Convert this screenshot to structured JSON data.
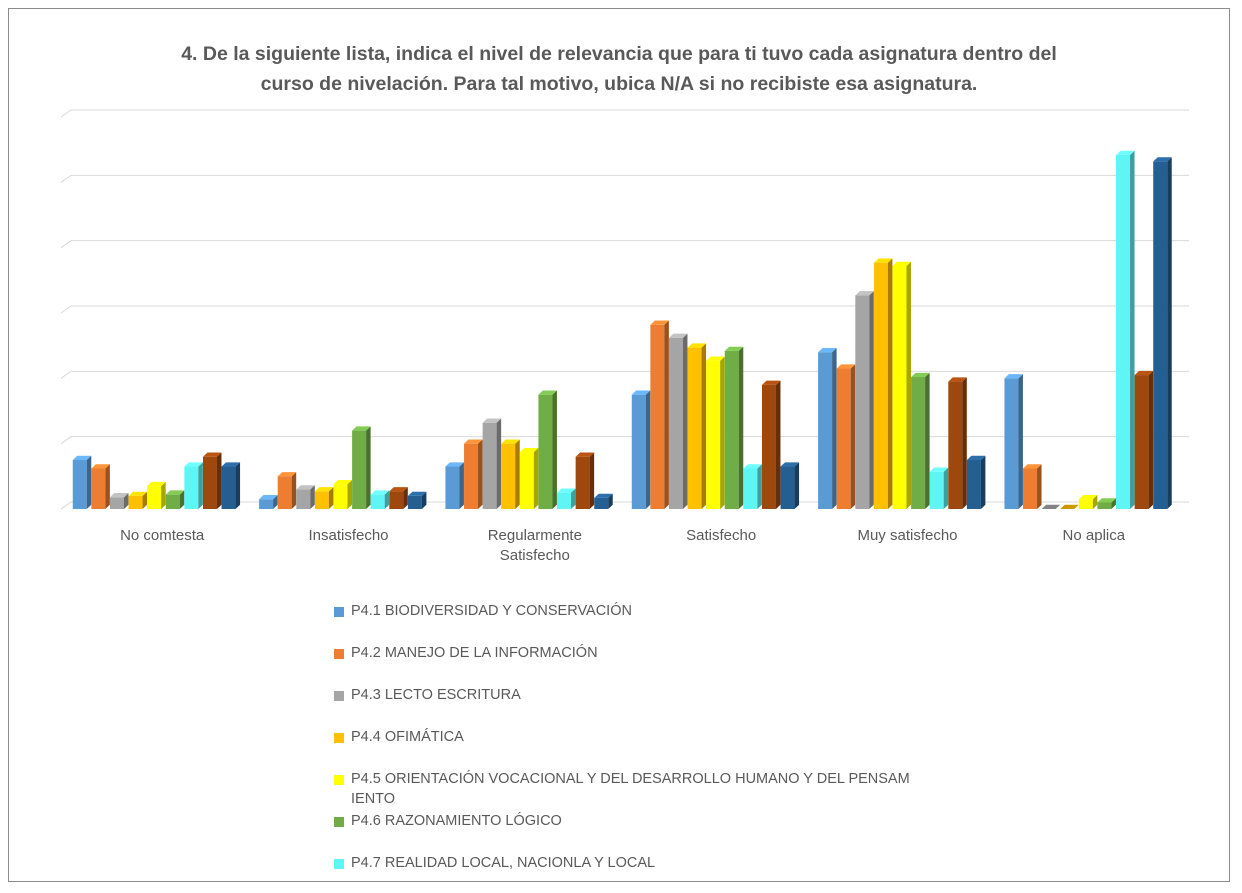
{
  "title": {
    "line1": "4. De la siguiente lista, indica el nivel de relevancia que para ti tuvo cada asignatura dentro del",
    "line2": "curso de nivelación. Para tal motivo, ubica N/A si no recibiste esa asignatura."
  },
  "chart_data": {
    "type": "bar",
    "title": "4. De la siguiente lista, indica el nivel de relevancia que para ti tuvo cada asignatura dentro del curso de nivelación. Para tal motivo, ubica N/A si no recibiste esa asignatura.",
    "categories": [
      "No comtesta",
      "Insatisfecho",
      "Regularmente Satisfecho",
      "Satisfecho",
      "Muy satisfecho",
      "No aplica"
    ],
    "ylim": [
      0,
      6
    ],
    "grid": true,
    "legend_position": "bottom",
    "series": [
      {
        "name": "P4.1 BIODIVERSIDAD Y CONSERVACIÓN",
        "color": "#5b9bd5",
        "values": [
          0.75,
          0.15,
          0.65,
          1.75,
          2.4,
          2.0
        ]
      },
      {
        "name": "P4.2 MANEJO DE LA INFORMACIÓN",
        "color": "#ed7d31",
        "values": [
          0.62,
          0.5,
          1.0,
          2.82,
          2.15,
          0.62
        ]
      },
      {
        "name": "P4.3 LECTO ESCRITURA",
        "color": "#a5a5a5",
        "values": [
          0.18,
          0.3,
          1.32,
          2.62,
          3.27,
          0.0
        ]
      },
      {
        "name": "P4.4 OFIMÁTICA",
        "color": "#ffc000",
        "values": [
          0.2,
          0.27,
          1.0,
          2.47,
          3.77,
          0.0
        ]
      },
      {
        "name": "P4.5 ORIENTACIÓN VOCACIONAL Y DEL DESARROLLO HUMANO Y DEL PENSAMIENTO",
        "color": "#ffff00",
        "values": [
          0.35,
          0.38,
          0.87,
          2.27,
          3.72,
          0.15
        ]
      },
      {
        "name": "P4.6 RAZONAMIENTO LÓGICO",
        "color": "#70ad47",
        "values": [
          0.22,
          1.2,
          1.75,
          2.42,
          2.02,
          0.1
        ]
      },
      {
        "name": "P4.7 REALIDAD LOCAL, NACIONLA Y LOCAL",
        "color": "#5ff5f5",
        "values": [
          0.65,
          0.22,
          0.25,
          0.62,
          0.57,
          5.42
        ]
      },
      {
        "color": "#9e480e",
        "values": [
          0.8,
          0.27,
          0.8,
          1.9,
          1.95,
          2.05
        ]
      },
      {
        "color": "#255e91",
        "values": [
          0.65,
          0.2,
          0.17,
          0.65,
          0.75,
          5.32
        ]
      }
    ]
  },
  "legend": {
    "items": [
      {
        "label": "P4.1 BIODIVERSIDAD Y CONSERVACIÓN",
        "color": "#5b9bd5"
      },
      {
        "label": "P4.2 MANEJO DE LA INFORMACIÓN",
        "color": "#ed7d31"
      },
      {
        "label": "P4.3 LECTO ESCRITURA",
        "color": "#a5a5a5"
      },
      {
        "label": "P4.4 OFIMÁTICA",
        "color": "#ffc000"
      },
      {
        "label": "P4.5 ORIENTACIÓN VOCACIONAL Y DEL DESARROLLO HUMANO Y DEL PENSAM IENTO",
        "color": "#ffff00"
      },
      {
        "label": "P4.6 RAZONAMIENTO LÓGICO",
        "color": "#70ad47"
      },
      {
        "label": "P4.7 REALIDAD LOCAL, NACIONLA Y LOCAL",
        "color": "#5ff5f5"
      }
    ]
  }
}
